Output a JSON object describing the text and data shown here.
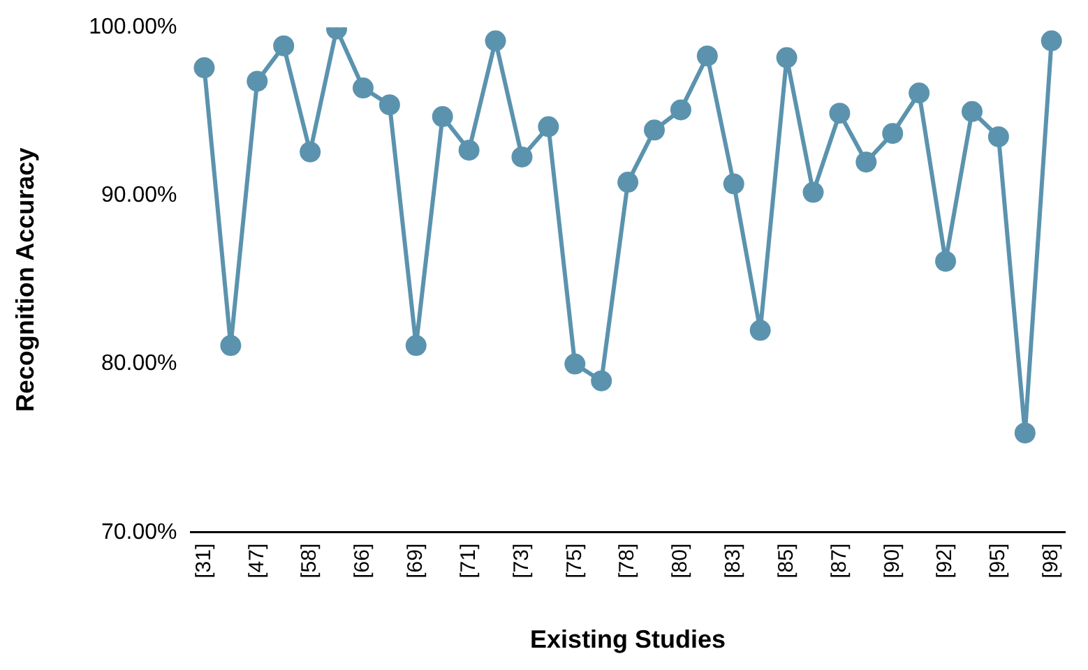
{
  "chart_data": {
    "type": "line",
    "xlabel": "Existing Studies",
    "ylabel": "Recognition Accuracy",
    "categories": [
      "[31]",
      null,
      "[47]",
      null,
      "[58]",
      null,
      "[66]",
      null,
      "[69]",
      null,
      "[71]",
      null,
      "[73]",
      null,
      "[75]",
      null,
      "[78]",
      null,
      "[80]",
      null,
      "[83]",
      null,
      "[85]",
      null,
      "[87]",
      null,
      "[90]",
      null,
      "[92]",
      null,
      "[95]",
      null,
      "[98]"
    ],
    "series": [
      {
        "color": "#5b93ae",
        "values": [
          97.6,
          81.1,
          96.8,
          98.9,
          92.6,
          99.9,
          96.4,
          95.4,
          81.1,
          94.7,
          92.7,
          99.2,
          92.3,
          94.1,
          80.0,
          79.0,
          90.8,
          93.9,
          95.1,
          98.3,
          90.7,
          82.0,
          98.2,
          90.2,
          94.9,
          92.0,
          93.7,
          96.1,
          86.1,
          95.0,
          93.5,
          75.9,
          99.2
        ]
      }
    ],
    "ylim": [
      70,
      100
    ],
    "yticks": [
      {
        "value": 70,
        "label": "70.00%"
      },
      {
        "value": 80,
        "label": "80.00%"
      },
      {
        "value": 90,
        "label": "90.00%"
      },
      {
        "value": 100,
        "label": "100.00%"
      }
    ],
    "grid": false,
    "legend": false,
    "marker": "circle",
    "line_style": "solid"
  }
}
